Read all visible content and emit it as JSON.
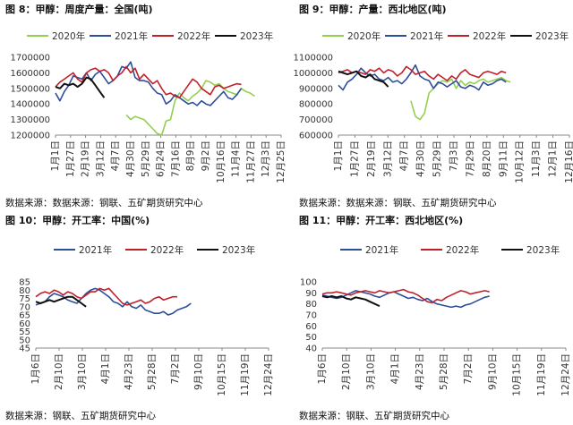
{
  "colors": {
    "y2020": "#92d050",
    "y2021": "#2e4e9a",
    "y2022": "#c0202a",
    "y2023": "#111111"
  },
  "charts": [
    {
      "title": "图 8：甲醇：周度产量：全国(吨)",
      "source": "数据来源：数据来源：钢联、五矿期货研究中心"
    },
    {
      "title": "图 9：甲醇：产量：西北地区(吨)",
      "source": "数据来源：数据来源：钢联、五矿期货研究中心"
    },
    {
      "title": "图 10：甲醇：开工率：中国(%)",
      "source": "数据来源：钢联、五矿期货研究中心"
    },
    {
      "title": "图 11：甲醇：开工率：西北地区(%)",
      "source": "数据来源：钢联、五矿期货研究中心"
    }
  ],
  "chart_data": [
    {
      "type": "line",
      "ylim": [
        1200000,
        1700000
      ],
      "yticks": [
        1200000,
        1300000,
        1400000,
        1500000,
        1600000,
        1700000
      ],
      "x_labels": [
        "1月1日",
        "1月27日",
        "2月19日",
        "3月12日",
        "4月7日",
        "4月30日",
        "5月29日",
        "6月24日",
        "7月16日",
        "8月9日",
        "9月2日",
        "10月16日",
        "11月4日",
        "11月27日",
        "12月3日",
        "12月25日"
      ],
      "series": [
        {
          "name": "2020年",
          "color": "y2020",
          "start": 16,
          "values": [
            1330000,
            1300000,
            1320000,
            1310000,
            1300000,
            1270000,
            1240000,
            1210000,
            1200000,
            1290000,
            1300000,
            1420000,
            1470000,
            1440000,
            1420000,
            1450000,
            1470000,
            1500000,
            1550000,
            1540000,
            1520000,
            1530000,
            1500000,
            1480000,
            1470000,
            1460000,
            1500000,
            1480000,
            1470000,
            1450000
          ]
        },
        {
          "name": "2021年",
          "color": "y2021",
          "start": 0,
          "values": [
            1470000,
            1420000,
            1480000,
            1520000,
            1580000,
            1570000,
            1560000,
            1600000,
            1550000,
            1590000,
            1610000,
            1570000,
            1530000,
            1550000,
            1580000,
            1640000,
            1630000,
            1670000,
            1570000,
            1550000,
            1550000,
            1540000,
            1500000,
            1470000,
            1460000,
            1400000,
            1420000,
            1460000,
            1440000,
            1420000,
            1400000,
            1410000,
            1390000,
            1420000,
            1400000,
            1390000,
            1420000,
            1450000,
            1480000,
            1440000,
            1430000,
            1460000,
            1500000
          ]
        },
        {
          "name": "2022年",
          "color": "y2022",
          "start": 0,
          "values": [
            1510000,
            1540000,
            1560000,
            1580000,
            1600000,
            1560000,
            1540000,
            1600000,
            1620000,
            1630000,
            1610000,
            1620000,
            1600000,
            1550000,
            1580000,
            1600000,
            1640000,
            1600000,
            1630000,
            1560000,
            1590000,
            1560000,
            1530000,
            1550000,
            1500000,
            1460000,
            1470000,
            1450000,
            1440000,
            1480000,
            1520000,
            1560000,
            1540000,
            1500000,
            1480000,
            1460000,
            1510000,
            1520000,
            1500000,
            1510000,
            1520000,
            1530000,
            1525000
          ]
        },
        {
          "name": "2023年",
          "color": "y2023",
          "start": 0,
          "values": [
            1510000,
            1500000,
            1530000,
            1520000,
            1530000,
            1510000,
            1530000,
            1570000,
            1560000,
            1520000,
            1480000,
            1440000
          ]
        }
      ]
    },
    {
      "type": "line",
      "ylim": [
        600000,
        1100000
      ],
      "yticks": [
        600000,
        700000,
        800000,
        900000,
        1000000,
        1100000
      ],
      "x_labels": [
        "1月1日",
        "1月27日",
        "2月19日",
        "3月12日",
        "4月7日",
        "4月30日",
        "5月29日",
        "7月3日",
        "7月29日",
        "8月20日",
        "9月11日",
        "10月12日",
        "11月3日",
        "12月1日",
        "12月16日"
      ],
      "series": [
        {
          "name": "2020年",
          "color": "y2020",
          "start": 16,
          "values": [
            820000,
            720000,
            700000,
            740000,
            870000,
            900000,
            930000,
            950000,
            940000,
            960000,
            900000,
            950000,
            920000,
            940000,
            930000,
            950000,
            960000,
            940000,
            950000,
            960000,
            970000,
            950000,
            940000
          ]
        },
        {
          "name": "2021年",
          "color": "y2021",
          "start": 0,
          "values": [
            920000,
            890000,
            940000,
            960000,
            990000,
            1030000,
            1000000,
            980000,
            990000,
            960000,
            950000,
            970000,
            940000,
            950000,
            930000,
            960000,
            1000000,
            1050000,
            980000,
            960000,
            950000,
            900000,
            940000,
            930000,
            910000,
            930000,
            950000,
            910000,
            900000,
            920000,
            910000,
            890000,
            940000,
            920000,
            930000,
            950000,
            960000,
            940000
          ]
        },
        {
          "name": "2022年",
          "color": "y2022",
          "start": 0,
          "values": [
            1000000,
            1010000,
            1020000,
            1000000,
            1010000,
            1000000,
            990000,
            1020000,
            1010000,
            1030000,
            1000000,
            1020000,
            1010000,
            980000,
            1000000,
            1040000,
            1020000,
            990000,
            1000000,
            1010000,
            980000,
            960000,
            990000,
            970000,
            950000,
            980000,
            960000,
            1000000,
            1020000,
            990000,
            980000,
            970000,
            1000000,
            1010000,
            1000000,
            990000,
            1010000,
            1000000
          ]
        },
        {
          "name": "2023年",
          "color": "y2023",
          "start": 0,
          "values": [
            1010000,
            1000000,
            990000,
            1000000,
            1010000,
            980000,
            970000,
            990000,
            960000,
            950000,
            940000,
            910000
          ]
        }
      ]
    },
    {
      "type": "line",
      "ylim": [
        45,
        85
      ],
      "yticks": [
        45,
        50,
        55,
        60,
        65,
        70,
        75,
        80,
        85
      ],
      "x_labels": [
        "1月6日",
        "2月10日",
        "3月10日",
        "4月1日",
        "4月23日",
        "5月28日",
        "7月2日",
        "9月10日",
        "10月15日",
        "11月19日",
        "12月24日"
      ],
      "series": [
        {
          "name": "2021年",
          "color": "y2021",
          "start": 0,
          "values": [
            71,
            72,
            73,
            76,
            78,
            77,
            76,
            74,
            73,
            72,
            75,
            78,
            80,
            81,
            80,
            78,
            76,
            73,
            72,
            70,
            73,
            70,
            69,
            71,
            68,
            67,
            66,
            66,
            67,
            65,
            66,
            68,
            69,
            70,
            72
          ]
        },
        {
          "name": "2022年",
          "color": "y2022",
          "start": 0,
          "values": [
            76,
            78,
            79,
            78,
            80,
            79,
            77,
            79,
            78,
            76,
            75,
            77,
            79,
            79,
            81,
            80,
            81,
            78,
            75,
            72,
            71,
            72,
            73,
            74,
            72,
            73,
            75,
            76,
            74,
            75,
            76,
            76
          ]
        },
        {
          "name": "2023年",
          "color": "y2023",
          "start": 0,
          "values": [
            73,
            72,
            73,
            74,
            73,
            74,
            75,
            76,
            76,
            74,
            72,
            70
          ]
        }
      ]
    },
    {
      "type": "line",
      "ylim": [
        40,
        100
      ],
      "yticks": [
        40,
        50,
        60,
        70,
        80,
        90,
        100
      ],
      "x_labels": [
        "1月6日",
        "2月10日",
        "3月10日",
        "4月1日",
        "4月23日",
        "5月28日",
        "7月2日",
        "9月10日",
        "10月15日",
        "11月19日",
        "12月24日"
      ],
      "series": [
        {
          "name": "2021年",
          "color": "y2021",
          "start": 0,
          "values": [
            88,
            87,
            86,
            85,
            86,
            88,
            90,
            92,
            91,
            90,
            89,
            87,
            86,
            88,
            90,
            91,
            89,
            87,
            85,
            86,
            84,
            83,
            85,
            82,
            80,
            79,
            78,
            77,
            78,
            77,
            79,
            80,
            82,
            84,
            86,
            87
          ]
        },
        {
          "name": "2022年",
          "color": "y2022",
          "start": 0,
          "values": [
            89,
            90,
            90,
            91,
            90,
            89,
            88,
            90,
            91,
            92,
            91,
            90,
            92,
            91,
            90,
            91,
            92,
            93,
            91,
            90,
            88,
            85,
            82,
            81,
            84,
            83,
            86,
            88,
            90,
            92,
            91,
            89,
            90,
            91,
            92,
            91
          ]
        },
        {
          "name": "2023年",
          "color": "y2023",
          "start": 0,
          "values": [
            87,
            86,
            87,
            86,
            87,
            85,
            84,
            86,
            85,
            84,
            82,
            80,
            78
          ]
        }
      ]
    }
  ]
}
